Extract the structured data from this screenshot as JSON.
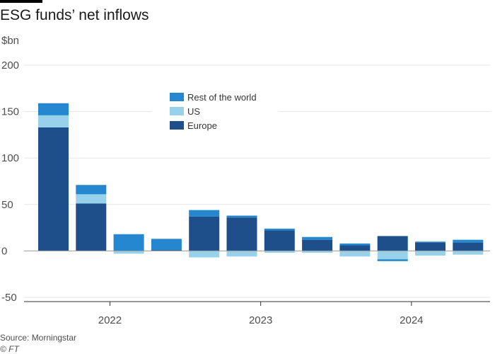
{
  "title": "ESG funds’ net inflows",
  "unit_label": "$bn",
  "source": "Source: Morningstar",
  "credit": "© FT",
  "colors": {
    "europe": "#1f4f8a",
    "us": "#98d2ea",
    "rest": "#2487cf",
    "grid": "#e6e6e6",
    "zero": "#999999",
    "axis": "#333333"
  },
  "chart_data": {
    "type": "bar",
    "stacked": true,
    "xlabel": "",
    "ylabel": "$bn",
    "ylim": [
      -50,
      200
    ],
    "y_ticks": [
      -50,
      0,
      50,
      100,
      150,
      200
    ],
    "x_tick_labels": [
      "2022",
      "2023",
      "2024"
    ],
    "categories": [
      "Q1 2022",
      "Q2 2022",
      "Q3 2022",
      "Q4 2022",
      "Q1 2023",
      "Q2 2023",
      "Q3 2023",
      "Q4 2023",
      "Q1 2024",
      "Q2 2024",
      "Q3 2024",
      "Q4 2024"
    ],
    "legend_position": "top-center",
    "series": [
      {
        "name": "Europe",
        "values": [
          133,
          51,
          0,
          1,
          37,
          36,
          22,
          12,
          6,
          16,
          9,
          9
        ]
      },
      {
        "name": "US",
        "values": [
          13,
          10,
          -3,
          0,
          -7,
          -6,
          -2,
          -2,
          -6,
          -9,
          -5,
          -4
        ]
      },
      {
        "name": "Rest of the world",
        "values": [
          13,
          10,
          18,
          12,
          7,
          2,
          2,
          3,
          2,
          -2,
          1,
          3
        ]
      }
    ],
    "legend": [
      "Rest of the world",
      "US",
      "Europe"
    ]
  }
}
